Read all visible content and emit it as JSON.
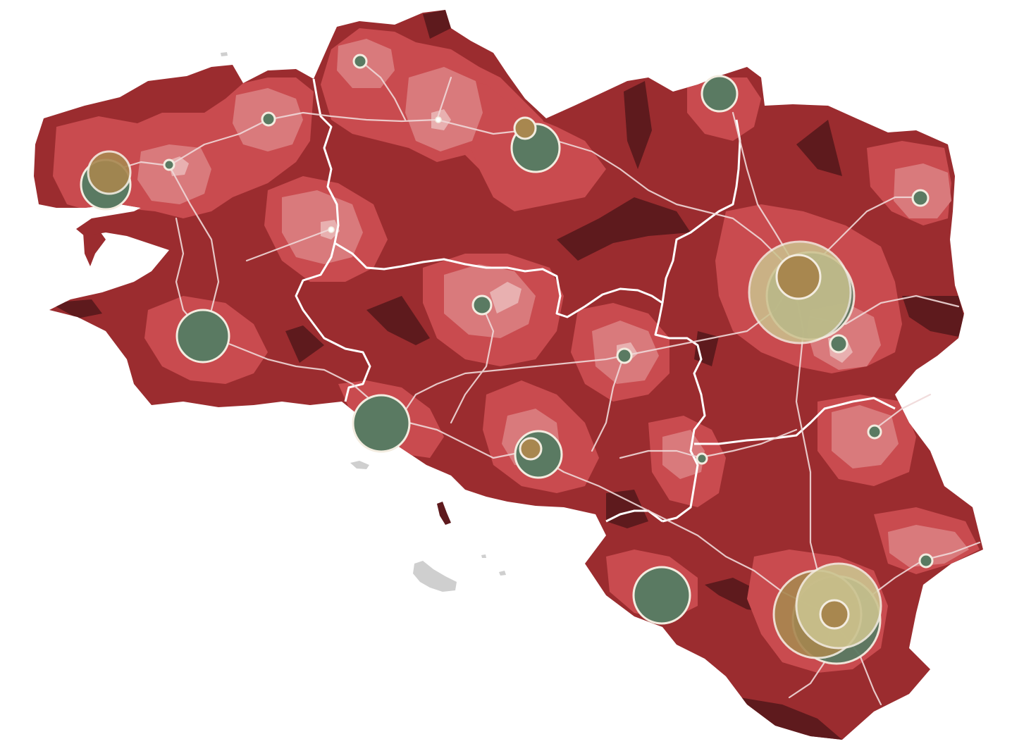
{
  "map": {
    "colors": {
      "background": "#ffffff",
      "island_gray": "#cfcfcf",
      "zone_dark": "#5e1a1d",
      "zone_medium": "#9b2c2f",
      "zone_light": "#c94b4f",
      "zone_lighter": "#d97a7c",
      "zone_pale": "#e8b0b0",
      "road": "#f0d8d8",
      "border": "#ffffff",
      "marker_green": "#5a7a62",
      "marker_gold": "#a8874f",
      "marker_cream": "#cbc38f",
      "marker_stroke": "#f3ece0"
    },
    "icons": {
      "city_marker": "circle-marker-icon"
    }
  }
}
